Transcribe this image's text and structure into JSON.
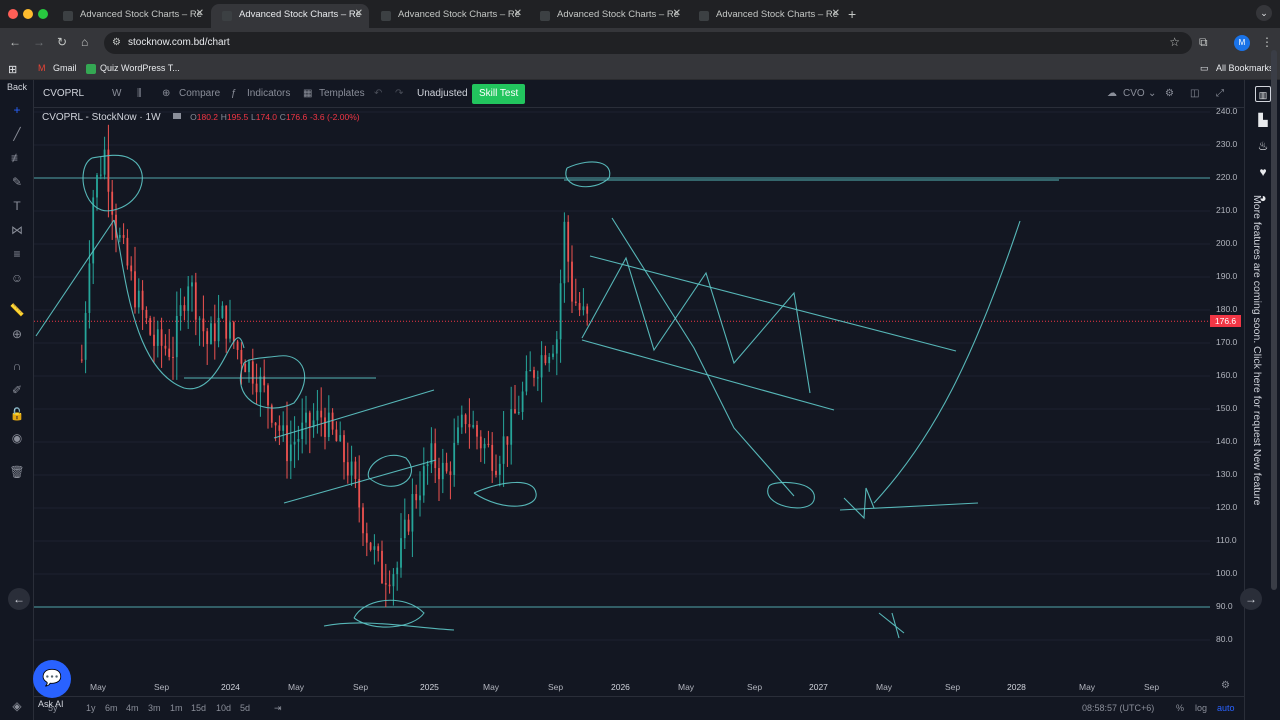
{
  "browser": {
    "tabs": [
      {
        "title": "Advanced Stock Charts – Re"
      },
      {
        "title": "Advanced Stock Charts – Re"
      },
      {
        "title": "Advanced Stock Charts – Re"
      },
      {
        "title": "Advanced Stock Charts – Re"
      },
      {
        "title": "Advanced Stock Charts – Re"
      }
    ],
    "url": "stocknow.com.bd/chart",
    "profile_initial": "M",
    "bookmarks": [
      {
        "label": "Gmail"
      },
      {
        "label": "Quiz WordPress T..."
      }
    ],
    "all_bookmarks": "All Bookmarks"
  },
  "app": {
    "back_label": "Back",
    "symbol": "CVOPRL",
    "interval": "W",
    "compare_label": "Compare",
    "indicators_label": "Indicators",
    "templates_label": "Templates",
    "unadjusted_label": "Unadjusted",
    "skill_test_label": "Skill Test",
    "cloud_symbol": "CVO",
    "legend": {
      "title": "CVOPRL - StockNow · 1W",
      "o_label": "O",
      "o": "180.2",
      "h_label": "H",
      "h": "195.5",
      "l_label": "L",
      "l": "174.0",
      "c_label": "C",
      "c": "176.6",
      "change": "-3.6 (-2.00%)"
    },
    "side_notice": "More features are coming soon. Click here for request New feature",
    "ai_label": "Ask AI",
    "ranges": [
      "5y",
      "1y",
      "6m",
      "4m",
      "3m",
      "1m",
      "15d",
      "10d",
      "5d"
    ],
    "clock": "08:58:57 (UTC+6)",
    "percent_label": "%",
    "log_label": "log",
    "auto_label": "auto"
  },
  "chart_data": {
    "type": "candlestick",
    "interval": "1W",
    "last_price": "176.6",
    "ylim": [
      75,
      245
    ],
    "y_ticks": [
      "240.0",
      "230.0",
      "220.0",
      "210.0",
      "200.0",
      "190.0",
      "180.0",
      "170.0",
      "160.0",
      "150.0",
      "140.0",
      "130.0",
      "120.0",
      "110.0",
      "100.0",
      "90.0",
      "80.0"
    ],
    "x_ticks": [
      "May",
      "Sep",
      "2024",
      "May",
      "Sep",
      "2025",
      "May",
      "Sep",
      "2026",
      "May",
      "Sep",
      "2027",
      "May",
      "Sep",
      "2028",
      "May",
      "Sep"
    ],
    "price_series": [
      {
        "x": "2023-04-03",
        "y": 165
      },
      {
        "x": "2023-04-24",
        "y": 215
      },
      {
        "x": "2023-05-15",
        "y": 228
      },
      {
        "x": "2023-06-05",
        "y": 205
      },
      {
        "x": "2023-07-10",
        "y": 185
      },
      {
        "x": "2023-08-14",
        "y": 170
      },
      {
        "x": "2023-09-18",
        "y": 168
      },
      {
        "x": "2023-10-16",
        "y": 190
      },
      {
        "x": "2023-11-20",
        "y": 170
      },
      {
        "x": "2023-12-18",
        "y": 178
      },
      {
        "x": "2024-01-15",
        "y": 168
      },
      {
        "x": "2024-02-19",
        "y": 160
      },
      {
        "x": "2024-03-18",
        "y": 150
      },
      {
        "x": "2024-04-15",
        "y": 138
      },
      {
        "x": "2024-05-13",
        "y": 143
      },
      {
        "x": "2024-06-17",
        "y": 148
      },
      {
        "x": "2024-07-15",
        "y": 140
      },
      {
        "x": "2024-08-12",
        "y": 130
      },
      {
        "x": "2024-09-09",
        "y": 112
      },
      {
        "x": "2024-10-07",
        "y": 100
      },
      {
        "x": "2024-11-04",
        "y": 102
      },
      {
        "x": "2024-12-02",
        "y": 122
      },
      {
        "x": "2025-01-06",
        "y": 135
      },
      {
        "x": "2025-02-03",
        "y": 130
      },
      {
        "x": "2025-03-10",
        "y": 148
      },
      {
        "x": "2025-04-07",
        "y": 140
      },
      {
        "x": "2025-05-05",
        "y": 135
      },
      {
        "x": "2025-06-02",
        "y": 145
      },
      {
        "x": "2025-07-07",
        "y": 160
      },
      {
        "x": "2025-08-04",
        "y": 168
      },
      {
        "x": "2025-08-25",
        "y": 172
      },
      {
        "x": "2025-09-08",
        "y": 205
      },
      {
        "x": "2025-09-22",
        "y": 185
      },
      {
        "x": "2025-10-06",
        "y": 180
      },
      {
        "x": "2025-10-20",
        "y": 176.6
      }
    ],
    "horizontal_levels": [
      {
        "value": 220,
        "style": "solid"
      },
      {
        "value": 176.6,
        "style": "dotted"
      },
      {
        "value": 90,
        "style": "solid"
      }
    ]
  }
}
